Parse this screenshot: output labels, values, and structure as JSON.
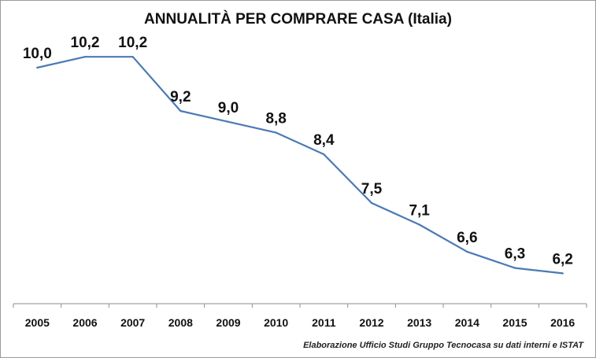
{
  "chart_data": {
    "type": "line",
    "title": "ANNUALITÀ PER COMPRARE CASA (Italia)",
    "xlabel": "",
    "ylabel": "",
    "categories": [
      "2005",
      "2006",
      "2007",
      "2008",
      "2009",
      "2010",
      "2011",
      "2012",
      "2013",
      "2014",
      "2015",
      "2016"
    ],
    "series": [
      {
        "values": [
          10.0,
          10.2,
          10.2,
          9.2,
          9.0,
          8.8,
          8.4,
          7.5,
          7.1,
          6.6,
          6.3,
          6.2
        ],
        "data_labels": [
          "10,0",
          "10,2",
          "10,2",
          "9,2",
          "9,0",
          "8,8",
          "8,4",
          "7,5",
          "7,1",
          "6,6",
          "6,3",
          "6,2"
        ],
        "color": "#4a7ab5"
      }
    ],
    "grid": false,
    "legend": "none",
    "source": "Elaborazione Ufficio Studi Gruppo Tecnocasa su dati interni e ISTAT"
  }
}
